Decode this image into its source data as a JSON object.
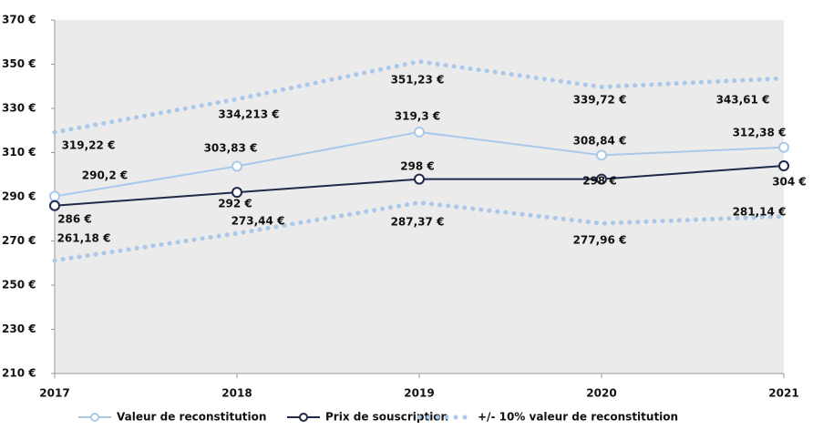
{
  "chart_data": {
    "type": "line",
    "x": [
      "2017",
      "2018",
      "2019",
      "2020",
      "2021"
    ],
    "ylim": [
      210,
      370
    ],
    "yticks": [
      {
        "value": 210,
        "label": "210 €"
      },
      {
        "value": 230,
        "label": "230 €"
      },
      {
        "value": 250,
        "label": "250 €"
      },
      {
        "value": 270,
        "label": "270 €"
      },
      {
        "value": 290,
        "label": "290 €"
      },
      {
        "value": 310,
        "label": "310 €"
      },
      {
        "value": 330,
        "label": "330 €"
      },
      {
        "value": 350,
        "label": "350 €"
      },
      {
        "value": 370,
        "label": "370 €"
      }
    ],
    "background": "#ebebeb",
    "series": [
      {
        "name": "Valeur de reconstitution",
        "color": "#a9c8ea",
        "style": "solid",
        "values": [
          290.2,
          303.83,
          319.3,
          308.84,
          312.38
        ],
        "value_labels": [
          "290,2 €",
          "303,83 €",
          "319,3 €",
          "308,84 €",
          "312,38 €"
        ]
      },
      {
        "name": "Prix de souscription",
        "color": "#1f2a4a",
        "style": "solid",
        "values": [
          286,
          292,
          298,
          298,
          304
        ],
        "value_labels": [
          "286 €",
          "292 €",
          "298 €",
          "298 €",
          "304 €"
        ]
      },
      {
        "name": "+/- 10% valeur de reconstitution",
        "color": "#a9c8ea",
        "style": "dotted",
        "values_upper": [
          319.22,
          334.213,
          351.23,
          339.72,
          343.61
        ],
        "value_labels_upper": [
          "319,22 €",
          "334,213 €",
          "351,23 €",
          "339,72 €",
          "343,61 €"
        ],
        "values_lower": [
          261.18,
          273.44,
          287.37,
          277.96,
          281.14
        ],
        "value_labels_lower": [
          "261,18 €",
          "273,44 €",
          "287,37 €",
          "277,96 €",
          "281,14 €"
        ]
      }
    ]
  }
}
